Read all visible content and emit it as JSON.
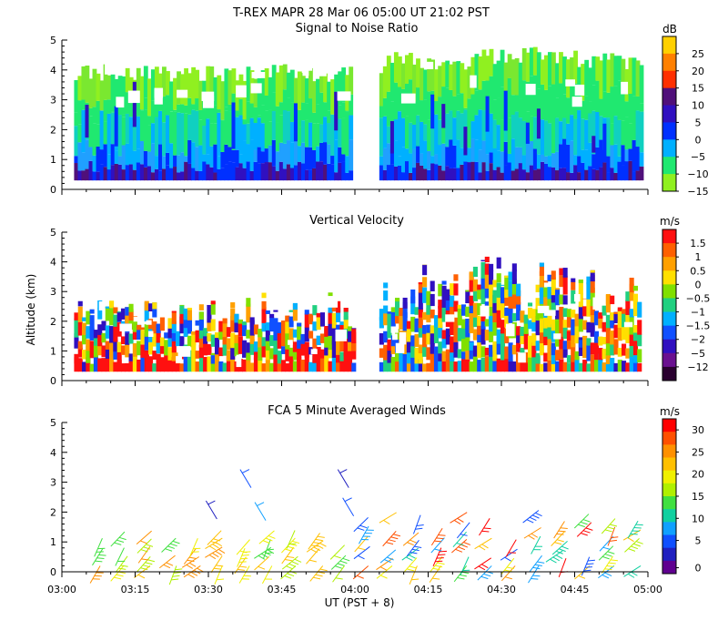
{
  "header": {
    "line1": "T-REX   MAPR 28 Mar 06   05:00 UT   21:02   PST"
  },
  "chart_data": [
    {
      "type": "heatmap",
      "title": "Signal to Noise Ratio",
      "ylabel": "",
      "xlabel": "",
      "ylim": [
        0,
        5
      ],
      "xlim": [
        "03:00",
        "05:00"
      ],
      "yticks": [
        "0",
        "1",
        "2",
        "3",
        "4",
        "5"
      ],
      "colorbar": {
        "units": "dB",
        "labels": [
          "25",
          "20",
          "15",
          "10",
          "5",
          "0",
          "−5",
          "−10",
          "−15"
        ],
        "colors": [
          "#ffd000",
          "#ff8000",
          "#ff3000",
          "#50107a",
          "#3010c0",
          "#0030ff",
          "#00b0ff",
          "#20e870",
          "#90f020"
        ]
      }
    },
    {
      "type": "heatmap",
      "title": "Vertical Velocity",
      "ylabel": "Altitude (km)",
      "xlabel": "",
      "ylim": [
        0,
        5
      ],
      "xlim": [
        "03:00",
        "05:00"
      ],
      "yticks": [
        "0",
        "1",
        "2",
        "3",
        "4",
        "5"
      ],
      "colorbar": {
        "units": "m/s",
        "labels": [
          "1.5",
          "1",
          "0.5",
          "0",
          "−0.5",
          "−1",
          "−1.5",
          "−2",
          "−5",
          "−12"
        ],
        "colors": [
          "#ff1010",
          "#ff6000",
          "#ffa000",
          "#ffe000",
          "#80e000",
          "#20d080",
          "#00b0ff",
          "#1050ff",
          "#3010c0",
          "#6a1090",
          "#2a0030"
        ]
      }
    },
    {
      "type": "scatter",
      "title": "FCA 5 Minute Averaged Winds",
      "ylabel": "",
      "xlabel": "UT  (PST + 8)",
      "ylim": [
        0,
        5
      ],
      "xticks": [
        "03:00",
        "03:15",
        "03:30",
        "03:45",
        "04:00",
        "04:15",
        "04:30",
        "04:45",
        "05:00"
      ],
      "yticks": [
        "0",
        "1",
        "2",
        "3",
        "4",
        "5"
      ],
      "colorbar": {
        "units": "m/s",
        "labels": [
          "30",
          "25",
          "20",
          "15",
          "10",
          "5",
          "0"
        ],
        "colors": [
          "#ff0000",
          "#ff5000",
          "#ff9000",
          "#ffc000",
          "#f0f000",
          "#b0f000",
          "#40e040",
          "#10d0a0",
          "#10a0ff",
          "#1050ff",
          "#2020c0",
          "#600090"
        ]
      }
    }
  ]
}
